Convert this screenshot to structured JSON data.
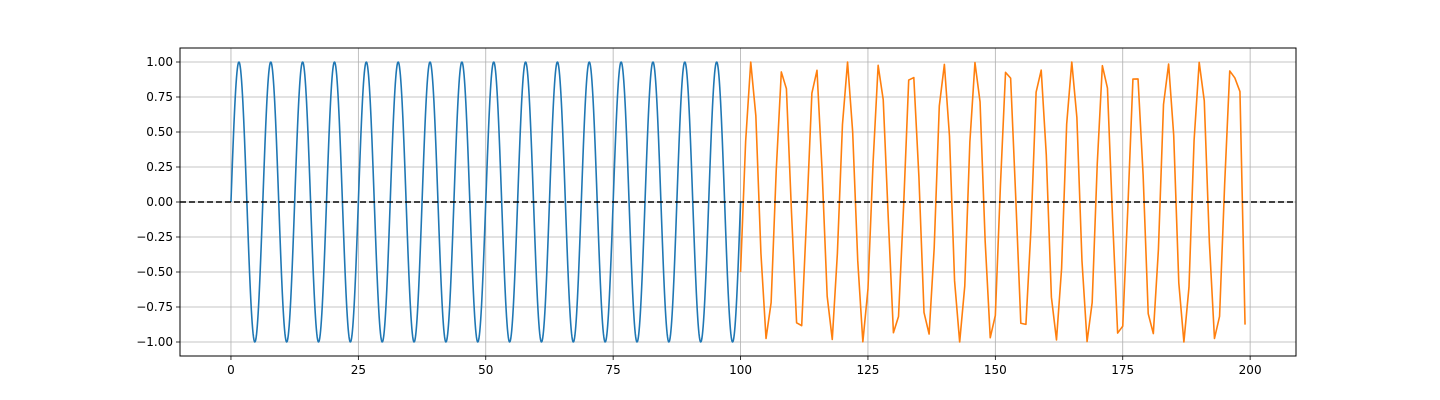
{
  "chart_data": {
    "type": "line",
    "title": "",
    "xlabel": "",
    "ylabel": "",
    "xlim": [
      -10,
      209
    ],
    "ylim": [
      -1.1,
      1.1
    ],
    "grid": true,
    "xticks": [
      0,
      25,
      50,
      75,
      100,
      125,
      150,
      175,
      200
    ],
    "xtick_labels": [
      "0",
      "25",
      "50",
      "75",
      "100",
      "125",
      "150",
      "175",
      "200"
    ],
    "yticks": [
      1.0,
      0.75,
      0.5,
      0.25,
      0.0,
      -0.25,
      -0.5,
      -0.75,
      -1.0
    ],
    "ytick_labels": [
      "1.00",
      "0.75",
      "0.50",
      "0.25",
      "0.00",
      "−0.25",
      "−0.50",
      "−0.75",
      "−1.00"
    ],
    "reference_line": {
      "y": 0.0,
      "style": "dashed",
      "color": "#000000"
    },
    "series": [
      {
        "color": "#1f77b4",
        "x_range": [
          0,
          100
        ],
        "function": "sin",
        "period": 6.25,
        "amplitude": 1.0
      },
      {
        "color": "#ff7f0e",
        "x": [
          100,
          101,
          102,
          103,
          104,
          105,
          106,
          107,
          108,
          109,
          110,
          111,
          112,
          113,
          114,
          115,
          116,
          117,
          118,
          119,
          120,
          121,
          122,
          123,
          124,
          125,
          126,
          127,
          128,
          129,
          130,
          131,
          132,
          133,
          134,
          135,
          136,
          137,
          138,
          139,
          140,
          141,
          142,
          143,
          144,
          145,
          146,
          147,
          148,
          149,
          150,
          151,
          152,
          153,
          154,
          155,
          156,
          157,
          158,
          159,
          160,
          161,
          162,
          163,
          164,
          165,
          166,
          167,
          168,
          169,
          170,
          171,
          172,
          173,
          174,
          175,
          176,
          177,
          178,
          179,
          180,
          181,
          182,
          183,
          184,
          185,
          186,
          187,
          188,
          189,
          190,
          191,
          192,
          193,
          194,
          195,
          196,
          197,
          198,
          199
        ],
        "y": [
          -0.5,
          0.433,
          1.0,
          0.616,
          -0.367,
          -0.975,
          -0.719,
          0.225,
          0.929,
          0.809,
          -0.076,
          -0.863,
          -0.883,
          -0.077,
          0.777,
          0.941,
          0.226,
          -0.673,
          -0.982,
          -0.369,
          0.554,
          1.0,
          0.502,
          -0.421,
          -0.999,
          -0.623,
          0.277,
          0.976,
          0.73,
          -0.125,
          -0.934,
          -0.818,
          -0.028,
          0.871,
          0.889,
          0.181,
          -0.789,
          -0.943,
          -0.328,
          0.685,
          0.983,
          0.471,
          -0.564,
          -1.0,
          -0.6,
          0.428,
          0.996,
          0.715,
          -0.278,
          -0.969,
          -0.81,
          0.12,
          0.926,
          0.885,
          0.034,
          -0.866,
          -0.874,
          -0.187,
          0.784,
          0.942,
          0.335,
          -0.68,
          -0.985,
          -0.475,
          0.557,
          1.0,
          0.604,
          -0.42,
          -0.997,
          -0.719,
          0.273,
          0.974,
          0.814,
          -0.115,
          -0.936,
          -0.887,
          -0.041,
          0.878,
          0.879,
          0.193,
          -0.798,
          -0.94,
          -0.34,
          0.697,
          0.985,
          0.478,
          -0.577,
          -1.0,
          -0.608,
          0.44,
          0.998,
          0.723,
          -0.288,
          -0.975,
          -0.817,
          0.128,
          0.936,
          0.886,
          0.789,
          -0.876
        ]
      }
    ]
  }
}
